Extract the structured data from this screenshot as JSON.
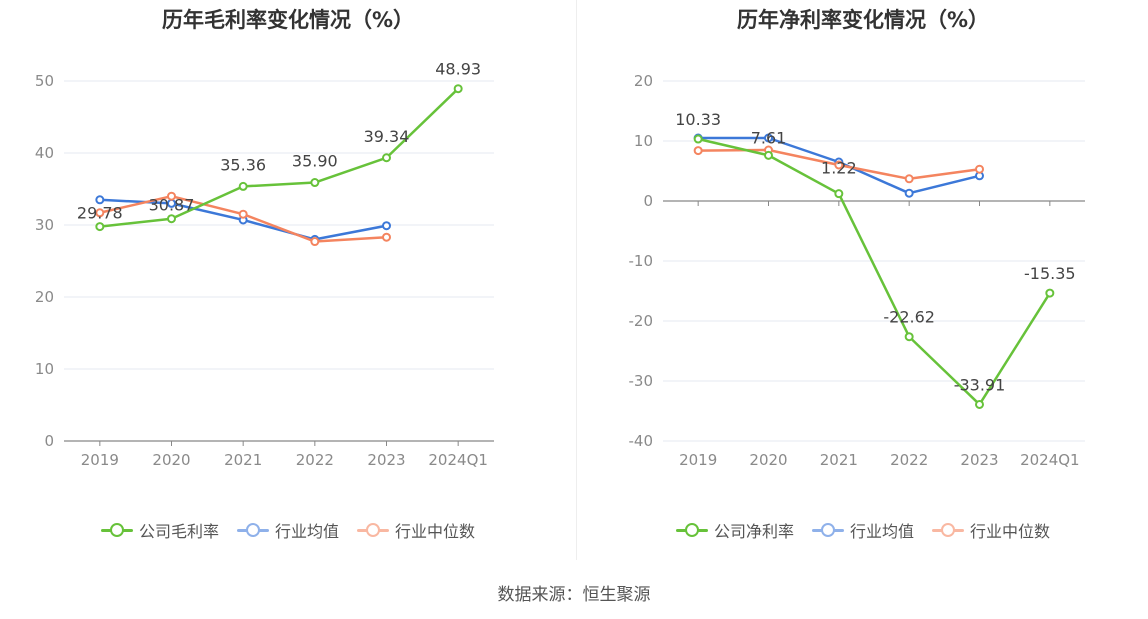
{
  "chart_data": [
    {
      "type": "line",
      "title": "历年毛利率变化情况（%）",
      "categories": [
        "2019",
        "2020",
        "2021",
        "2022",
        "2023",
        "2024Q1"
      ],
      "ylim": [
        0,
        50
      ],
      "yticks": [
        0,
        10,
        20,
        30,
        40,
        50
      ],
      "grid": true,
      "legend_position": "bottom-center",
      "series": [
        {
          "name": "公司毛利率",
          "color": "#67c23a",
          "values": [
            29.78,
            30.87,
            35.36,
            35.9,
            39.34,
            48.93
          ],
          "data_labels": [
            "29.78",
            "30.87",
            "35.36",
            "35.90",
            "39.34",
            "48.93"
          ]
        },
        {
          "name": "行业均值",
          "color": "#3c78d8",
          "values": [
            33.5,
            33.0,
            30.7,
            28.0,
            29.9,
            null
          ]
        },
        {
          "name": "行业中位数",
          "color": "#f4845f",
          "values": [
            31.7,
            34.0,
            31.5,
            27.7,
            28.3,
            null
          ]
        }
      ]
    },
    {
      "type": "line",
      "title": "历年净利率变化情况（%）",
      "categories": [
        "2019",
        "2020",
        "2021",
        "2022",
        "2023",
        "2024Q1"
      ],
      "ylim": [
        -40,
        20
      ],
      "yticks": [
        -40,
        -30,
        -20,
        -10,
        0,
        10,
        20
      ],
      "grid": true,
      "legend_position": "bottom-center",
      "series": [
        {
          "name": "公司净利率",
          "color": "#67c23a",
          "values": [
            10.33,
            7.61,
            1.22,
            -22.62,
            -33.91,
            -15.35
          ],
          "data_labels": [
            "10.33",
            "7.61",
            "1.22",
            "-22.62",
            "-33.91",
            "-15.35"
          ]
        },
        {
          "name": "行业均值",
          "color": "#3c78d8",
          "values": [
            10.5,
            10.5,
            6.5,
            1.3,
            4.2,
            null
          ]
        },
        {
          "name": "行业中位数",
          "color": "#f4845f",
          "values": [
            8.4,
            8.5,
            6.0,
            3.7,
            5.3,
            null
          ]
        }
      ]
    }
  ],
  "footer": {
    "source": "数据来源：恒生聚源"
  }
}
